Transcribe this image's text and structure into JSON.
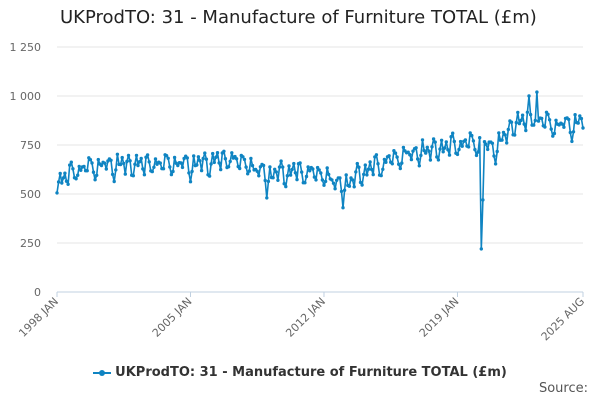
{
  "page_title": "UKProdTO: 31 - Manufacture of Furniture TOTAL (£m)",
  "source_label": "Source:",
  "colors": {
    "series": "#0f84c2",
    "grid": "#e6e6e6",
    "axis": "#c0d0e0"
  },
  "chart_data": {
    "type": "line",
    "title": "UKProdTO: 31 - Manufacture of Furniture TOTAL (£m)",
    "xlabel": "",
    "ylabel": "",
    "ylim": [
      0,
      1250
    ],
    "y_ticks": [
      0,
      250,
      500,
      750,
      1000,
      1250
    ],
    "y_tick_labels": [
      "0",
      "250",
      "500",
      "750",
      "1 000",
      "1 250"
    ],
    "x_range": [
      "1998-01",
      "2025-08"
    ],
    "x_ticks": [
      "1998-01",
      "2005-01",
      "2012-01",
      "2019-01",
      "2025-08"
    ],
    "x_tick_labels": [
      "1998 JAN",
      "2005 JAN",
      "2012 JAN",
      "2019 JAN",
      "2025 AUG"
    ],
    "grid": true,
    "legend_position": "bottom-center",
    "series": [
      {
        "name": "UKProdTO: 31 - Manufacture of Furniture TOTAL (£m)",
        "start": "1998-01",
        "frequency": "monthly",
        "annual_anchors": [
          [
            "1998-01",
            545
          ],
          [
            "1999-01",
            610
          ],
          [
            "2000-01",
            630
          ],
          [
            "2001-01",
            635
          ],
          [
            "2002-01",
            640
          ],
          [
            "2003-01",
            640
          ],
          [
            "2004-01",
            645
          ],
          [
            "2005-01",
            635
          ],
          [
            "2006-01",
            650
          ],
          [
            "2007-01",
            670
          ],
          [
            "2008-01",
            640
          ],
          [
            "2009-01",
            580
          ],
          [
            "2010-01",
            600
          ],
          [
            "2011-01",
            600
          ],
          [
            "2012-01",
            585
          ],
          [
            "2013-01",
            520
          ],
          [
            "2014-01",
            600
          ],
          [
            "2015-01",
            640
          ],
          [
            "2016-01",
            680
          ],
          [
            "2017-01",
            700
          ],
          [
            "2018-01",
            720
          ],
          [
            "2019-01",
            740
          ],
          [
            "2020-01",
            750
          ],
          [
            "2021-01",
            720
          ],
          [
            "2022-01",
            850
          ],
          [
            "2023-01",
            880
          ],
          [
            "2024-01",
            840
          ],
          [
            "2025-01",
            840
          ],
          [
            "2025-08",
            860
          ]
        ],
        "seasonal_amplitude": 55,
        "peaks": [
          [
            "2022-10",
            1000
          ],
          [
            "2023-03",
            1020
          ]
        ],
        "troughs": [
          [
            "2009-01",
            480
          ],
          [
            "2013-01",
            430
          ],
          [
            "2020-04",
            220
          ],
          [
            "2020-05",
            470
          ]
        ]
      }
    ]
  }
}
